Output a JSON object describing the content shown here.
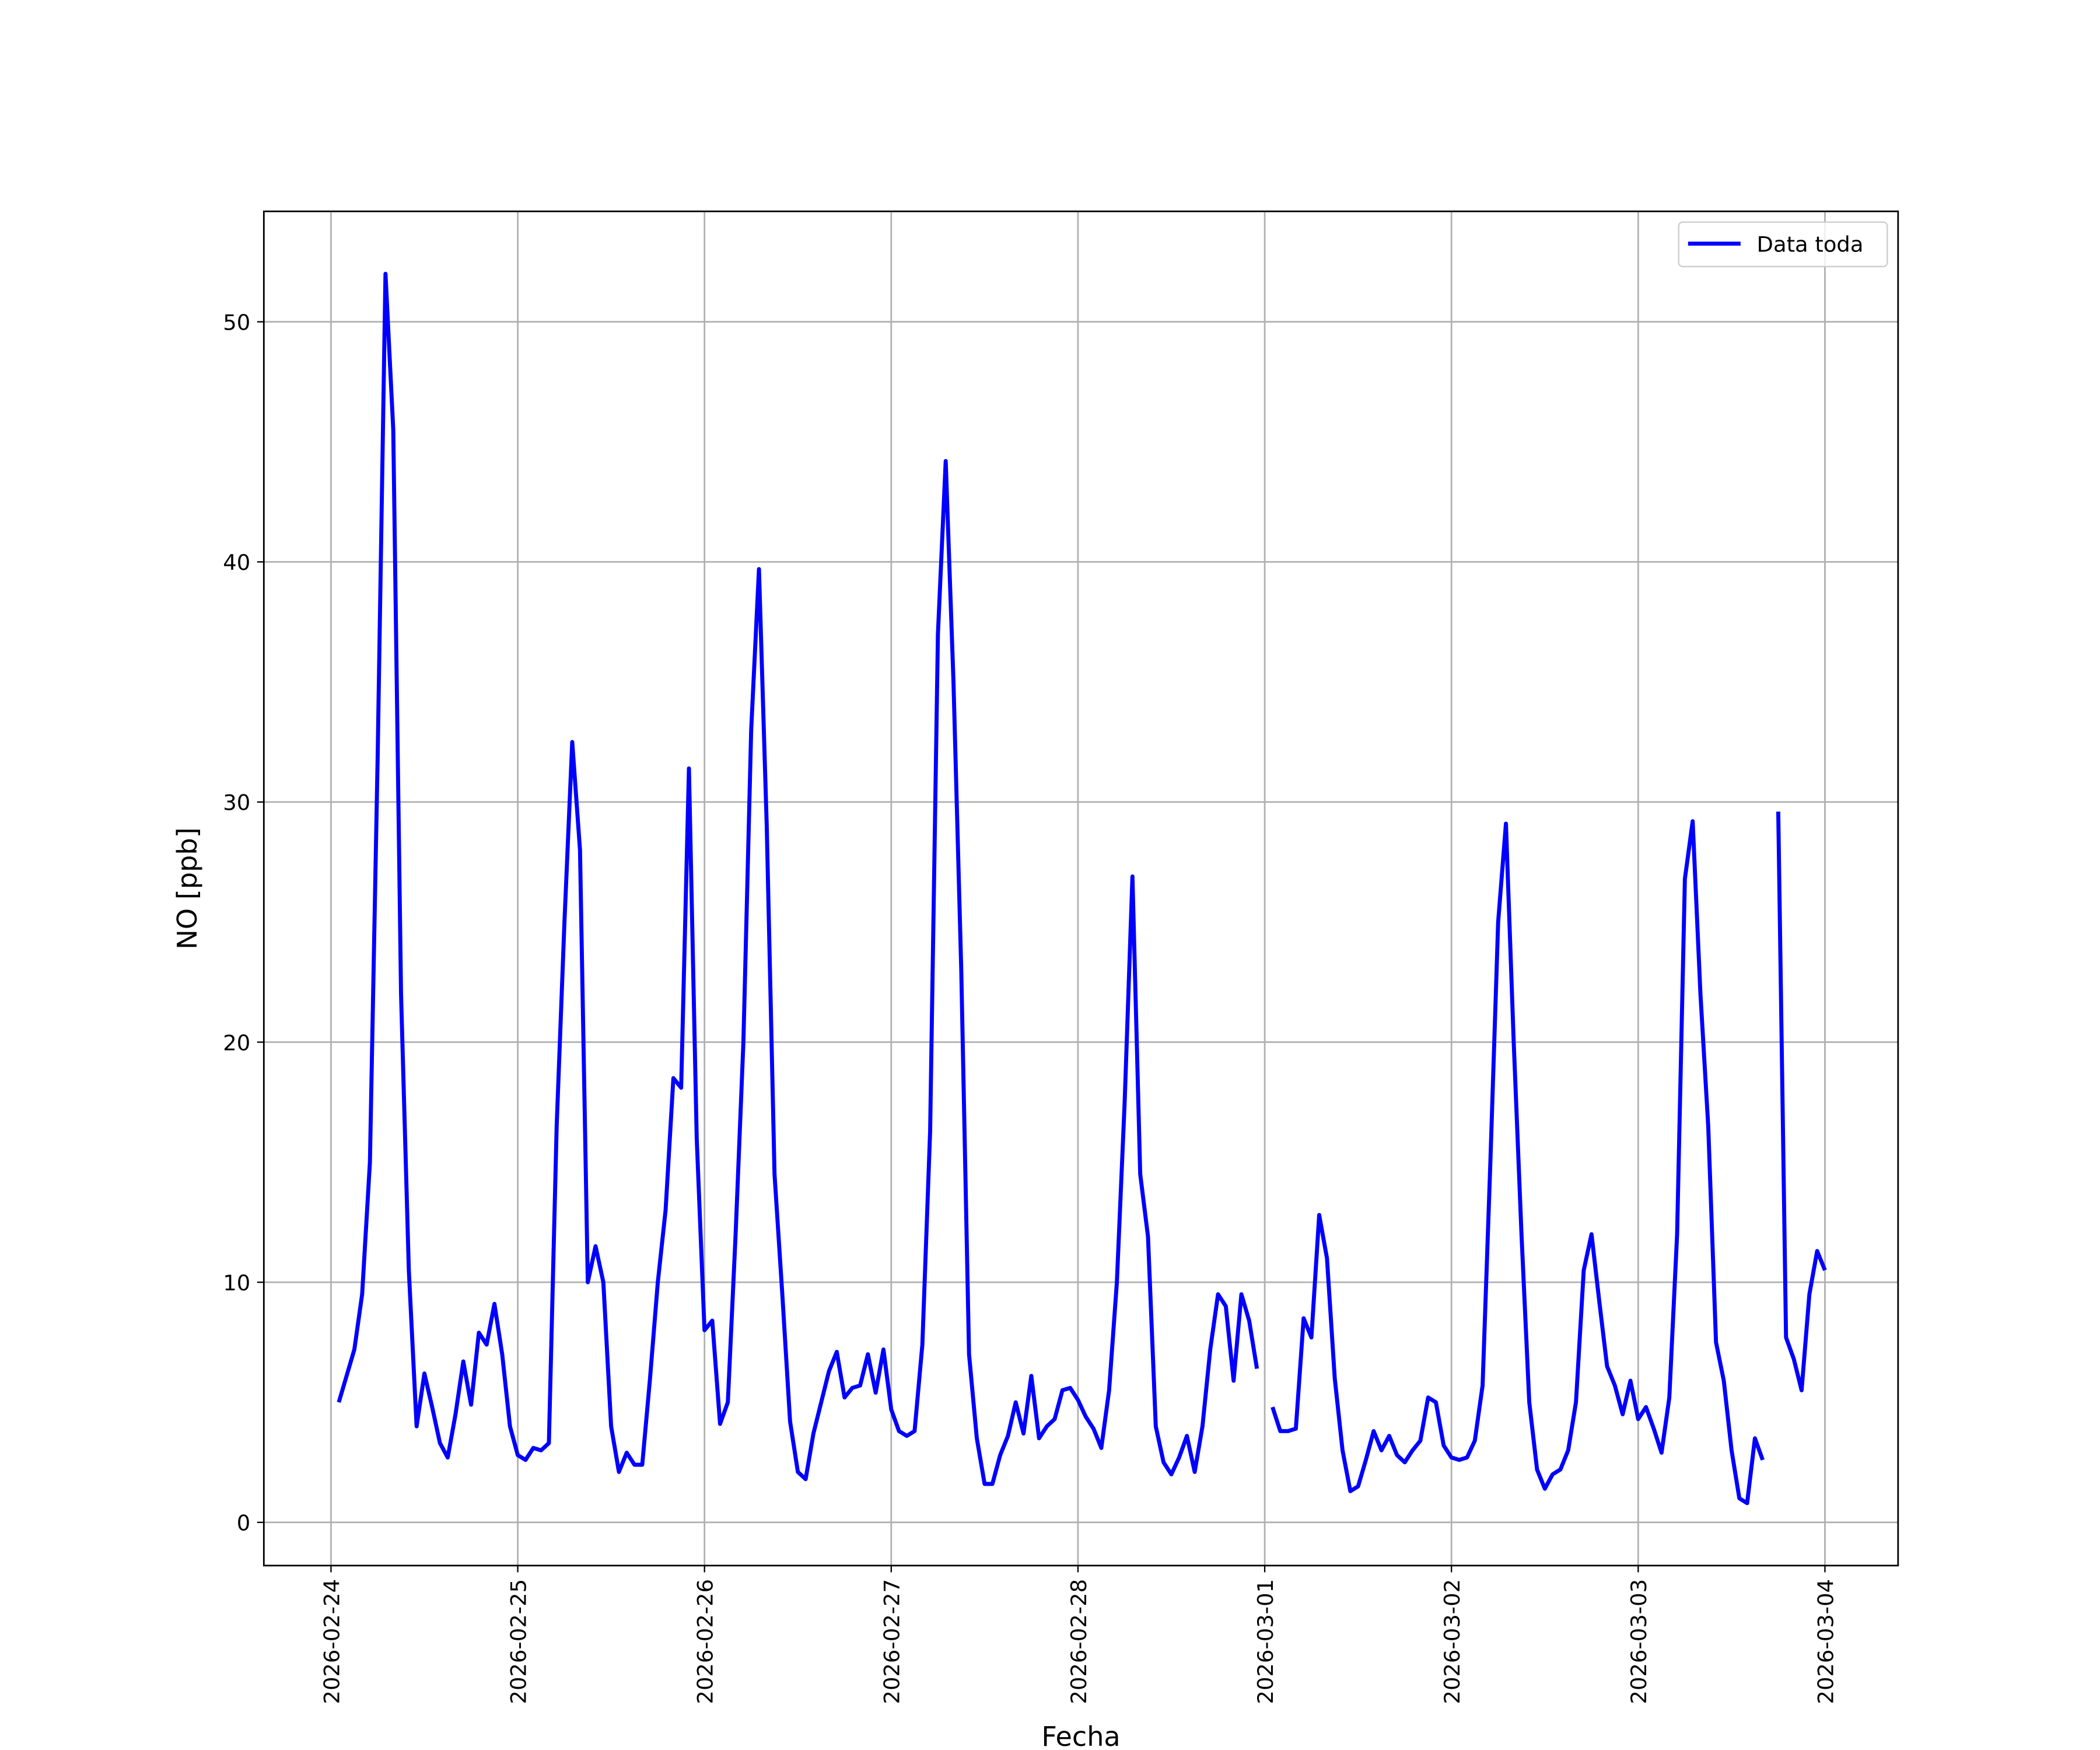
{
  "chart_data": {
    "type": "line",
    "xlabel": "Fecha",
    "ylabel": "NO [ppb]",
    "x": [
      "2026-02-24 01:00",
      "2026-02-24 03:00",
      "2026-02-24 04:00",
      "2026-02-24 05:00",
      "2026-02-24 06:00",
      "2026-02-24 07:00",
      "2026-02-24 08:00",
      "2026-02-24 09:00",
      "2026-02-24 10:00",
      "2026-02-24 11:00",
      "2026-02-24 12:00",
      "2026-02-24 13:00",
      "2026-02-24 14:00",
      "2026-02-24 15:00",
      "2026-02-24 16:00",
      "2026-02-24 17:00",
      "2026-02-24 18:00",
      "2026-02-24 19:00",
      "2026-02-24 20:00",
      "2026-02-24 21:00",
      "2026-02-24 22:00",
      "2026-02-24 23:00",
      "2026-02-25 00:00",
      "2026-02-25 01:00",
      "2026-02-25 02:00",
      "2026-02-25 03:00",
      "2026-02-25 04:00",
      "2026-02-25 05:00",
      "2026-02-25 06:00",
      "2026-02-25 07:00",
      "2026-02-25 08:00",
      "2026-02-25 09:00",
      "2026-02-25 10:00",
      "2026-02-25 11:00",
      "2026-02-25 12:00",
      "2026-02-25 13:00",
      "2026-02-25 14:00",
      "2026-02-25 15:00",
      "2026-02-25 16:00",
      "2026-02-25 17:00",
      "2026-02-25 18:00",
      "2026-02-25 19:00",
      "2026-02-25 20:00",
      "2026-02-25 21:00",
      "2026-02-25 22:00",
      "2026-02-25 23:00",
      "2026-02-26 00:00",
      "2026-02-26 01:00",
      "2026-02-26 02:00",
      "2026-02-26 03:00",
      "2026-02-26 04:00",
      "2026-02-26 05:00",
      "2026-02-26 06:00",
      "2026-02-26 07:00",
      "2026-02-26 08:00",
      "2026-02-26 09:00",
      "2026-02-26 10:00",
      "2026-02-26 11:00",
      "2026-02-26 12:00",
      "2026-02-26 13:00",
      "2026-02-26 14:00",
      "2026-02-26 15:00",
      "2026-02-26 16:00",
      "2026-02-26 17:00",
      "2026-02-26 18:00",
      "2026-02-26 19:00",
      "2026-02-26 20:00",
      "2026-02-26 21:00",
      "2026-02-26 22:00",
      "2026-02-26 23:00",
      "2026-02-27 00:00",
      "2026-02-27 01:00",
      "2026-02-27 02:00",
      "2026-02-27 03:00",
      "2026-02-27 04:00",
      "2026-02-27 05:00",
      "2026-02-27 06:00",
      "2026-02-27 07:00",
      "2026-02-27 08:00",
      "2026-02-27 09:00",
      "2026-02-27 10:00",
      "2026-02-27 11:00",
      "2026-02-27 12:00",
      "2026-02-27 13:00",
      "2026-02-27 14:00",
      "2026-02-27 15:00",
      "2026-02-27 16:00",
      "2026-02-27 17:00",
      "2026-02-27 18:00",
      "2026-02-27 19:00",
      "2026-02-27 20:00",
      "2026-02-27 21:00",
      "2026-02-27 22:00",
      "2026-02-27 23:00",
      "2026-02-28 00:00",
      "2026-02-28 01:00",
      "2026-02-28 02:00",
      "2026-02-28 03:00",
      "2026-02-28 04:00",
      "2026-02-28 05:00",
      "2026-02-28 06:00",
      "2026-02-28 07:00",
      "2026-02-28 08:00",
      "2026-02-28 09:00",
      "2026-02-28 10:00",
      "2026-02-28 11:00",
      "2026-02-28 12:00",
      "2026-02-28 13:00",
      "2026-02-28 14:00",
      "2026-02-28 15:00",
      "2026-02-28 16:00",
      "2026-02-28 17:00",
      "2026-02-28 18:00",
      "2026-02-28 19:00",
      "2026-02-28 20:00",
      "2026-02-28 21:00",
      "2026-02-28 22:00",
      "2026-02-28 23:00",
      "2026-03-01 00:00",
      "2026-03-01 01:00",
      "2026-03-01 02:00",
      "2026-03-01 03:00",
      "2026-03-01 04:00",
      "2026-03-01 05:00",
      "2026-03-01 06:00",
      "2026-03-01 07:00",
      "2026-03-01 08:00",
      "2026-03-01 09:00",
      "2026-03-01 10:00",
      "2026-03-01 11:00",
      "2026-03-01 12:00",
      "2026-03-01 13:00",
      "2026-03-01 14:00",
      "2026-03-01 15:00",
      "2026-03-01 16:00",
      "2026-03-01 17:00",
      "2026-03-01 18:00",
      "2026-03-01 19:00",
      "2026-03-01 20:00",
      "2026-03-01 21:00",
      "2026-03-01 22:00",
      "2026-03-01 23:00",
      "2026-03-02 00:00",
      "2026-03-02 01:00",
      "2026-03-02 02:00",
      "2026-03-02 03:00",
      "2026-03-02 04:00",
      "2026-03-02 05:00",
      "2026-03-02 06:00",
      "2026-03-02 07:00",
      "2026-03-02 08:00",
      "2026-03-02 09:00",
      "2026-03-02 10:00",
      "2026-03-02 11:00",
      "2026-03-02 12:00",
      "2026-03-02 13:00",
      "2026-03-02 14:00",
      "2026-03-02 15:00",
      "2026-03-02 16:00",
      "2026-03-02 17:00",
      "2026-03-02 18:00",
      "2026-03-02 19:00",
      "2026-03-02 20:00",
      "2026-03-02 21:00",
      "2026-03-02 22:00",
      "2026-03-02 23:00",
      "2026-03-03 00:00",
      "2026-03-03 01:00",
      "2026-03-03 02:00",
      "2026-03-03 03:00",
      "2026-03-03 04:00",
      "2026-03-03 05:00",
      "2026-03-03 06:00",
      "2026-03-03 07:00",
      "2026-03-03 08:00",
      "2026-03-03 09:00",
      "2026-03-03 10:00",
      "2026-03-03 11:00",
      "2026-03-03 12:00",
      "2026-03-03 13:00",
      "2026-03-03 14:00",
      "2026-03-03 15:00",
      "2026-03-03 16:00",
      "2026-03-03 17:00",
      "2026-03-03 18:00",
      "2026-03-03 19:00",
      "2026-03-03 20:00",
      "2026-03-03 21:00",
      "2026-03-03 22:00",
      "2026-03-03 23:00",
      "2026-03-04 00:00"
    ],
    "series": [
      {
        "name": "Data toda",
        "color": "#0000ff",
        "values": [
          5.0,
          7.2,
          9.5,
          15,
          32,
          52,
          45.5,
          22,
          10.5,
          4,
          6.2,
          4.8,
          3.3,
          2.7,
          4.5,
          6.7,
          4.9,
          7.9,
          7.4,
          9.1,
          7,
          4,
          2.8,
          2.6,
          3.1,
          3.0,
          3.3,
          16.5,
          25,
          32.5,
          28,
          10,
          11.5,
          10,
          4,
          2.1,
          2.9,
          2.4,
          2.4,
          6,
          10,
          13,
          18.5,
          18.1,
          31.4,
          16,
          8,
          8.4,
          4.1,
          5,
          12,
          20,
          33,
          39.7,
          29,
          14.5,
          9.5,
          4.2,
          2.1,
          1.8,
          3.7,
          5,
          6.3,
          7.1,
          5.2,
          5.6,
          5.7,
          7,
          5.4,
          7.2,
          4.7,
          3.8,
          3.6,
          3.8,
          7.4,
          16.3,
          37,
          44.2,
          35,
          23,
          7,
          3.5,
          1.6,
          1.6,
          2.8,
          3.6,
          5,
          3.7,
          6.1,
          3.5,
          4,
          4.3,
          5.5,
          5.6,
          5.1,
          4.4,
          3.9,
          3.1,
          5.5,
          10,
          17.5,
          26.9,
          14.5,
          11.9,
          4,
          2.5,
          2,
          2.7,
          3.6,
          2.1,
          4,
          7.2,
          9.5,
          9,
          5.9,
          9.5,
          8.4,
          6.4,
          null,
          4.8,
          3.8,
          3.8,
          3.9,
          8.5,
          7.7,
          12.8,
          11,
          6,
          3,
          1.3,
          1.5,
          2.6,
          3.8,
          3,
          3.6,
          2.8,
          2.5,
          3,
          3.4,
          5.2,
          5,
          3.2,
          2.7,
          2.6,
          2.7,
          3.4,
          5.7,
          15,
          25,
          29.1,
          20,
          12,
          5,
          2.2,
          1.4,
          2,
          2.2,
          3,
          5,
          10.5,
          12,
          9.2,
          6.5,
          5.7,
          4.5,
          5.9,
          4.3,
          4.8,
          3.9,
          2.9,
          5.2,
          12,
          26.8,
          29.2,
          22,
          16.5,
          7.5,
          5.9,
          3,
          1,
          0.8,
          3.5,
          2.6,
          null,
          29.6,
          7.7,
          6.8,
          5.5,
          9.5,
          11.3,
          10.5
        ]
      }
    ],
    "xlim": [
      "2026-02-23 15:22",
      "2026-03-04 09:24"
    ],
    "xticks": [
      "2026-02-24",
      "2026-02-25",
      "2026-02-26",
      "2026-02-27",
      "2026-02-28",
      "2026-03-01",
      "2026-03-02",
      "2026-03-03",
      "2026-03-04"
    ],
    "ylim": [
      -1.8,
      54.6
    ],
    "yticks": [
      0,
      10,
      20,
      30,
      40,
      50
    ],
    "grid": true,
    "legend": "upper right"
  }
}
